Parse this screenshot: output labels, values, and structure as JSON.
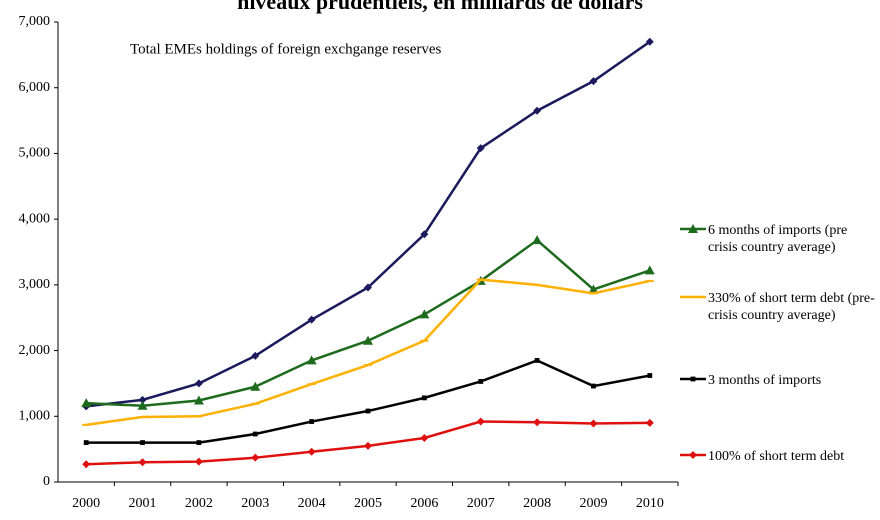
{
  "chart_data": {
    "type": "line",
    "title": "niveaux prudentiels, en milliards de dollars",
    "annotation": "Total EMEs holdings of foreign exchgange reserves",
    "categories": [
      "2000",
      "2001",
      "2002",
      "2003",
      "2004",
      "2005",
      "2006",
      "2007",
      "2008",
      "2009",
      "2010"
    ],
    "ylim": [
      0,
      7000
    ],
    "yticks": [
      0,
      {
        "value": 1000,
        "label": "1,000"
      },
      {
        "value": 2000,
        "label": "2,000"
      },
      {
        "value": 3000,
        "label": "3,000"
      },
      {
        "value": 4000,
        "label": "4,000"
      },
      {
        "value": 5000,
        "label": "5,000"
      },
      {
        "value": 6000,
        "label": "6,000"
      },
      {
        "value": 7000,
        "label": "7,000"
      }
    ],
    "grid": false,
    "series": [
      {
        "color": "#1b1a5c",
        "marker": "diamond",
        "values": [
          1150,
          1250,
          1500,
          1920,
          2470,
          2960,
          3770,
          5080,
          5650,
          6100,
          6700
        ]
      },
      {
        "name": "6 months of imports (pre crisis country average)",
        "color": "#1e6b1e",
        "marker": "triangle",
        "values": [
          1200,
          1160,
          1240,
          1450,
          1850,
          2150,
          2550,
          3060,
          3680,
          2930,
          3220
        ]
      },
      {
        "name": "330% of short term debt (pre-crisis country average)",
        "color": "#ffb000",
        "marker": "dash",
        "values": [
          870,
          990,
          1000,
          1190,
          1490,
          1780,
          2150,
          3080,
          3000,
          2870,
          3060
        ]
      },
      {
        "name": "3 months of imports",
        "color": "#000000",
        "marker": "square",
        "values": [
          600,
          600,
          600,
          730,
          920,
          1080,
          1280,
          1530,
          1850,
          1460,
          1620
        ]
      },
      {
        "name": "100% of short term debt",
        "color": "#e01010",
        "marker": "diamond",
        "values": [
          270,
          300,
          310,
          370,
          460,
          550,
          670,
          920,
          910,
          890,
          900
        ]
      }
    ]
  }
}
